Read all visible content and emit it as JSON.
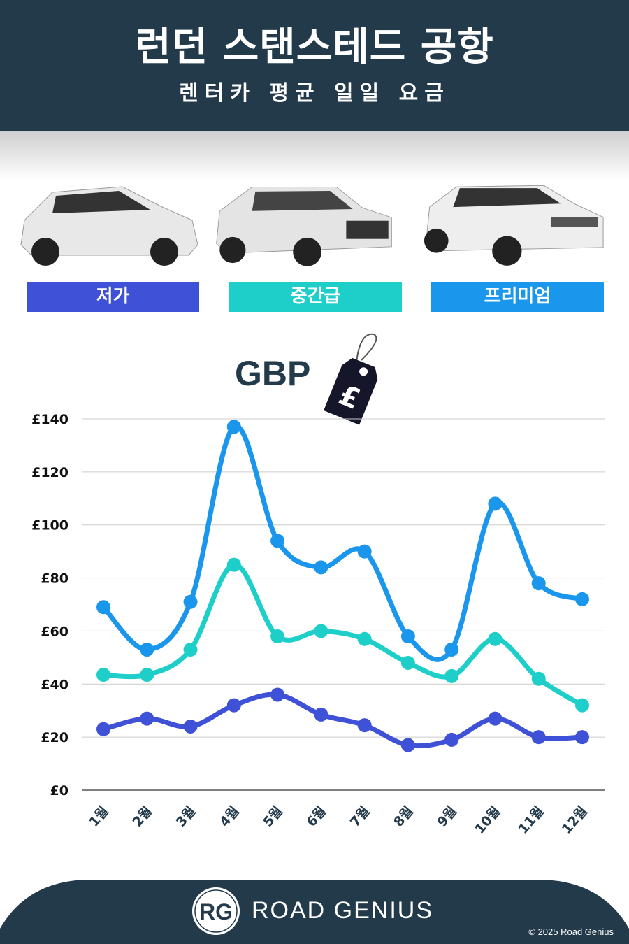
{
  "header": {
    "title": "런던 스탠스테드 공항",
    "subtitle": "렌터카 평균 일일 요금"
  },
  "categories": [
    {
      "label": "저가",
      "color": "#3f51d6"
    },
    {
      "label": "중간급",
      "color": "#1ecfc9"
    },
    {
      "label": "프리미엄",
      "color": "#1a96ec"
    }
  ],
  "currency": {
    "label": "GBP",
    "symbol": "£"
  },
  "chart_data": {
    "type": "line",
    "categories": [
      "1월",
      "2월",
      "3월",
      "4월",
      "5월",
      "6월",
      "7월",
      "8월",
      "9월",
      "10월",
      "11월",
      "12월"
    ],
    "series": [
      {
        "name": "저가",
        "color": "#3f51d6",
        "values": [
          23,
          27,
          24,
          32,
          36,
          28.5,
          24.5,
          17,
          19,
          27,
          20,
          20
        ]
      },
      {
        "name": "중간급",
        "color": "#1ecfc9",
        "values": [
          43.5,
          43.5,
          53,
          85,
          58,
          60,
          57,
          48,
          43,
          57,
          42,
          32
        ]
      },
      {
        "name": "프리미엄",
        "color": "#1a96ec",
        "values": [
          69,
          53,
          71,
          137,
          94,
          84,
          90,
          58,
          53,
          108,
          78,
          72
        ]
      }
    ],
    "yticks": [
      "£0",
      "£20",
      "£40",
      "£60",
      "£80",
      "£100",
      "£120",
      "£140"
    ],
    "ylim": [
      0,
      140
    ],
    "grid": true,
    "legend": "top"
  },
  "footer": {
    "brand": "ROAD GENIUS",
    "logo": "RG",
    "copyright": "© 2025 Road Genius"
  }
}
